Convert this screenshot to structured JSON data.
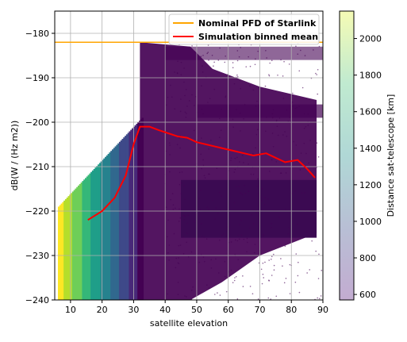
{
  "chart_data": {
    "type": "scatter",
    "xlabel": "satellite elevation",
    "ylabel": "dB(W / (Hz m2))",
    "xlim": [
      5,
      90
    ],
    "ylim": [
      -240,
      -175
    ],
    "xticks": [
      10,
      20,
      30,
      40,
      50,
      60,
      70,
      80,
      90
    ],
    "yticks": [
      -240,
      -230,
      -220,
      -210,
      -200,
      -190,
      -180
    ],
    "grid": true,
    "legend": {
      "position": "top-right",
      "entries": [
        {
          "label": "Nominal PFD of Starlink",
          "color": "#ffa500"
        },
        {
          "label": "Simulation binned mean",
          "color": "#ff0000"
        }
      ]
    },
    "series": [
      {
        "name": "Nominal PFD of Starlink",
        "kind": "hline",
        "y": -182,
        "color": "#ffa500"
      },
      {
        "name": "Simulation binned mean",
        "kind": "line",
        "color": "#ff0000",
        "x": [
          15.5,
          20,
          24,
          27.5,
          30,
          32,
          35,
          38,
          41,
          44,
          47,
          50,
          53,
          56,
          59,
          62,
          65,
          68,
          72,
          75,
          78,
          82,
          85,
          87.5
        ],
        "y": [
          -222,
          -220,
          -217,
          -212,
          -205,
          -201,
          -201,
          -201.8,
          -202.5,
          -203.2,
          -203.5,
          -204.5,
          -205,
          -205.5,
          -206,
          -206.5,
          -207,
          -207.5,
          -207,
          -208,
          -209,
          -208.5,
          -210.5,
          -212.5
        ]
      }
    ],
    "scatter_cloud": {
      "description_color": "distance sat-telescope",
      "colormap": "viridis"
    },
    "colorbar": {
      "label": "Distance sat-telescope [km]",
      "range": [
        570,
        2150
      ],
      "ticks": [
        600,
        800,
        1000,
        1200,
        1400,
        1600,
        1800,
        2000
      ],
      "colors": [
        "#c3acd1",
        "#b8bfd5",
        "#b0d8d6",
        "#c0ead0",
        "#f5fbb5"
      ]
    }
  }
}
